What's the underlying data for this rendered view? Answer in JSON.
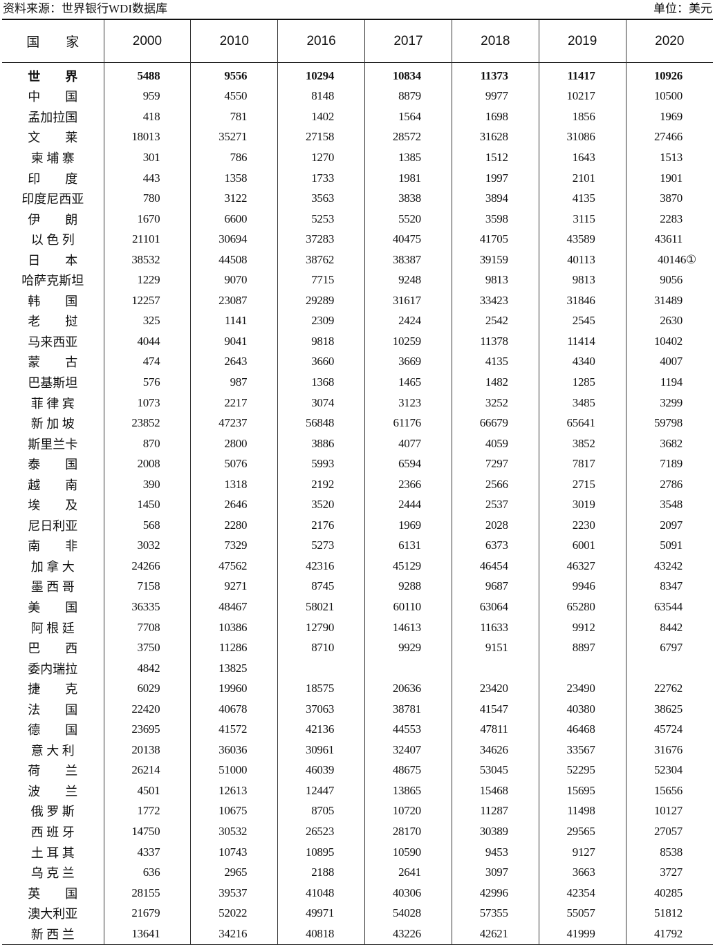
{
  "source": "资料来源：世界银行WDI数据库",
  "unit": "单位：美元",
  "columns": [
    "国　　家",
    "2000",
    "2010",
    "2016",
    "2017",
    "2018",
    "2019",
    "2020"
  ],
  "rows": [
    {
      "name": "世　　界",
      "values": [
        "5488",
        "9556",
        "10294",
        "10834",
        "11373",
        "11417",
        "10926"
      ],
      "bold": true
    },
    {
      "name": "中　　国",
      "values": [
        "959",
        "4550",
        "8148",
        "8879",
        "9977",
        "10217",
        "10500"
      ]
    },
    {
      "name": "孟加拉国",
      "values": [
        "418",
        "781",
        "1402",
        "1564",
        "1698",
        "1856",
        "1969"
      ]
    },
    {
      "name": "文　　莱",
      "values": [
        "18013",
        "35271",
        "27158",
        "28572",
        "31628",
        "31086",
        "27466"
      ]
    },
    {
      "name": "柬 埔 寨",
      "values": [
        "301",
        "786",
        "1270",
        "1385",
        "1512",
        "1643",
        "1513"
      ]
    },
    {
      "name": "印　　度",
      "values": [
        "443",
        "1358",
        "1733",
        "1981",
        "1997",
        "2101",
        "1901"
      ]
    },
    {
      "name": "印度尼西亚",
      "values": [
        "780",
        "3122",
        "3563",
        "3838",
        "3894",
        "4135",
        "3870"
      ]
    },
    {
      "name": "伊　　朗",
      "values": [
        "1670",
        "6600",
        "5253",
        "5520",
        "3598",
        "3115",
        "2283"
      ]
    },
    {
      "name": "以 色 列",
      "values": [
        "21101",
        "30694",
        "37283",
        "40475",
        "41705",
        "43589",
        "43611"
      ]
    },
    {
      "name": "日　　本",
      "values": [
        "38532",
        "44508",
        "38762",
        "38387",
        "39159",
        "40113",
        "40146①"
      ]
    },
    {
      "name": "哈萨克斯坦",
      "values": [
        "1229",
        "9070",
        "7715",
        "9248",
        "9813",
        "9813",
        "9056"
      ]
    },
    {
      "name": "韩　　国",
      "values": [
        "12257",
        "23087",
        "29289",
        "31617",
        "33423",
        "31846",
        "31489"
      ]
    },
    {
      "name": "老　　挝",
      "values": [
        "325",
        "1141",
        "2309",
        "2424",
        "2542",
        "2545",
        "2630"
      ]
    },
    {
      "name": "马来西亚",
      "values": [
        "4044",
        "9041",
        "9818",
        "10259",
        "11378",
        "11414",
        "10402"
      ]
    },
    {
      "name": "蒙　　古",
      "values": [
        "474",
        "2643",
        "3660",
        "3669",
        "4135",
        "4340",
        "4007"
      ]
    },
    {
      "name": "巴基斯坦",
      "values": [
        "576",
        "987",
        "1368",
        "1465",
        "1482",
        "1285",
        "1194"
      ]
    },
    {
      "name": "菲 律 宾",
      "values": [
        "1073",
        "2217",
        "3074",
        "3123",
        "3252",
        "3485",
        "3299"
      ]
    },
    {
      "name": "新 加 坡",
      "values": [
        "23852",
        "47237",
        "56848",
        "61176",
        "66679",
        "65641",
        "59798"
      ]
    },
    {
      "name": "斯里兰卡",
      "values": [
        "870",
        "2800",
        "3886",
        "4077",
        "4059",
        "3852",
        "3682"
      ]
    },
    {
      "name": "泰　　国",
      "values": [
        "2008",
        "5076",
        "5993",
        "6594",
        "7297",
        "7817",
        "7189"
      ]
    },
    {
      "name": "越　　南",
      "values": [
        "390",
        "1318",
        "2192",
        "2366",
        "2566",
        "2715",
        "2786"
      ]
    },
    {
      "name": "埃　　及",
      "values": [
        "1450",
        "2646",
        "3520",
        "2444",
        "2537",
        "3019",
        "3548"
      ]
    },
    {
      "name": "尼日利亚",
      "values": [
        "568",
        "2280",
        "2176",
        "1969",
        "2028",
        "2230",
        "2097"
      ]
    },
    {
      "name": "南　　非",
      "values": [
        "3032",
        "7329",
        "5273",
        "6131",
        "6373",
        "6001",
        "5091"
      ]
    },
    {
      "name": "加 拿 大",
      "values": [
        "24266",
        "47562",
        "42316",
        "45129",
        "46454",
        "46327",
        "43242"
      ]
    },
    {
      "name": "墨 西 哥",
      "values": [
        "7158",
        "9271",
        "8745",
        "9288",
        "9687",
        "9946",
        "8347"
      ]
    },
    {
      "name": "美　　国",
      "values": [
        "36335",
        "48467",
        "58021",
        "60110",
        "63064",
        "65280",
        "63544"
      ]
    },
    {
      "name": "阿 根 廷",
      "values": [
        "7708",
        "10386",
        "12790",
        "14613",
        "11633",
        "9912",
        "8442"
      ]
    },
    {
      "name": "巴　　西",
      "values": [
        "3750",
        "11286",
        "8710",
        "9929",
        "9151",
        "8897",
        "6797"
      ]
    },
    {
      "name": "委内瑞拉",
      "values": [
        "4842",
        "13825",
        "",
        "",
        "",
        "",
        ""
      ]
    },
    {
      "name": "捷　　克",
      "values": [
        "6029",
        "19960",
        "18575",
        "20636",
        "23420",
        "23490",
        "22762"
      ]
    },
    {
      "name": "法　　国",
      "values": [
        "22420",
        "40678",
        "37063",
        "38781",
        "41547",
        "40380",
        "38625"
      ]
    },
    {
      "name": "德　　国",
      "values": [
        "23695",
        "41572",
        "42136",
        "44553",
        "47811",
        "46468",
        "45724"
      ]
    },
    {
      "name": "意 大 利",
      "values": [
        "20138",
        "36036",
        "30961",
        "32407",
        "34626",
        "33567",
        "31676"
      ]
    },
    {
      "name": "荷　　兰",
      "values": [
        "26214",
        "51000",
        "46039",
        "48675",
        "53045",
        "52295",
        "52304"
      ]
    },
    {
      "name": "波　　兰",
      "values": [
        "4501",
        "12613",
        "12447",
        "13865",
        "15468",
        "15695",
        "15656"
      ]
    },
    {
      "name": "俄 罗 斯",
      "values": [
        "1772",
        "10675",
        "8705",
        "10720",
        "11287",
        "11498",
        "10127"
      ]
    },
    {
      "name": "西 班 牙",
      "values": [
        "14750",
        "30532",
        "26523",
        "28170",
        "30389",
        "29565",
        "27057"
      ]
    },
    {
      "name": "土 耳 其",
      "values": [
        "4337",
        "10743",
        "10895",
        "10590",
        "9453",
        "9127",
        "8538"
      ]
    },
    {
      "name": "乌 克 兰",
      "values": [
        "636",
        "2965",
        "2188",
        "2641",
        "3097",
        "3663",
        "3727"
      ]
    },
    {
      "name": "英　　国",
      "values": [
        "28155",
        "39537",
        "41048",
        "40306",
        "42996",
        "42354",
        "40285"
      ]
    },
    {
      "name": "澳大利亚",
      "values": [
        "21679",
        "52022",
        "49971",
        "54028",
        "57355",
        "55057",
        "51812"
      ]
    },
    {
      "name": "新 西 兰",
      "values": [
        "13641",
        "34216",
        "40818",
        "43226",
        "42621",
        "41999",
        "41792"
      ]
    }
  ]
}
